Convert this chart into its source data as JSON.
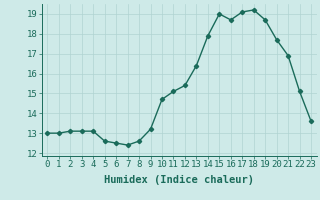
{
  "x": [
    0,
    1,
    2,
    3,
    4,
    5,
    6,
    7,
    8,
    9,
    10,
    11,
    12,
    13,
    14,
    15,
    16,
    17,
    18,
    19,
    20,
    21,
    22,
    23
  ],
  "y": [
    13.0,
    13.0,
    13.1,
    13.1,
    13.1,
    12.6,
    12.5,
    12.4,
    12.6,
    13.2,
    14.7,
    15.1,
    15.4,
    16.4,
    17.9,
    19.0,
    18.7,
    19.1,
    19.2,
    18.7,
    17.7,
    16.9,
    15.1,
    13.6
  ],
  "line_color": "#1a6b5a",
  "marker": "D",
  "marker_size": 2.2,
  "bg_color": "#ceeae8",
  "grid_color": "#b0d4d2",
  "xlabel": "Humidex (Indice chaleur)",
  "xlim": [
    -0.5,
    23.5
  ],
  "ylim": [
    11.85,
    19.5
  ],
  "yticks": [
    12,
    13,
    14,
    15,
    16,
    17,
    18,
    19
  ],
  "xticks": [
    0,
    1,
    2,
    3,
    4,
    5,
    6,
    7,
    8,
    9,
    10,
    11,
    12,
    13,
    14,
    15,
    16,
    17,
    18,
    19,
    20,
    21,
    22,
    23
  ],
  "xtick_labels": [
    "0",
    "1",
    "2",
    "3",
    "4",
    "5",
    "6",
    "7",
    "8",
    "9",
    "10",
    "11",
    "12",
    "13",
    "14",
    "15",
    "16",
    "17",
    "18",
    "19",
    "20",
    "21",
    "22",
    "23"
  ],
  "tick_color": "#1a6b5a",
  "label_fontsize": 7.5,
  "tick_fontsize": 6.5,
  "linewidth": 1.0
}
